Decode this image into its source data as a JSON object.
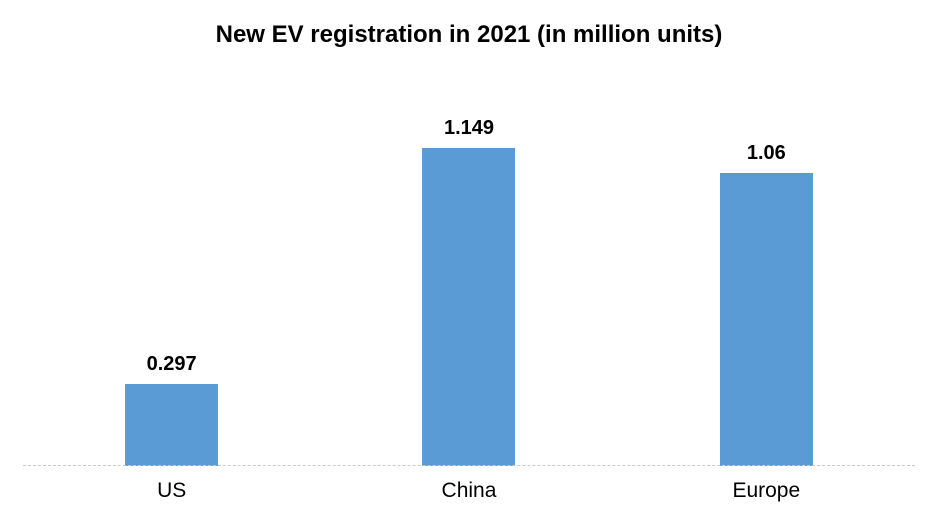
{
  "chart_data": {
    "type": "bar",
    "title": "New EV registration in 2021 (in million units)",
    "categories": [
      "US",
      "China",
      "Europe"
    ],
    "values": [
      0.297,
      1.149,
      1.06
    ],
    "value_labels": [
      "0.297",
      "1.149",
      "1.06"
    ],
    "xlabel": "",
    "ylabel": "",
    "ylim": [
      0,
      1.3
    ],
    "grid": false,
    "legend": "none",
    "data_labels": "above-bars",
    "bar_color": "#5B9BD5",
    "axis_line_color": "#C9C9C9",
    "text_color": "#000000",
    "background_color": "#FFFFFF"
  }
}
